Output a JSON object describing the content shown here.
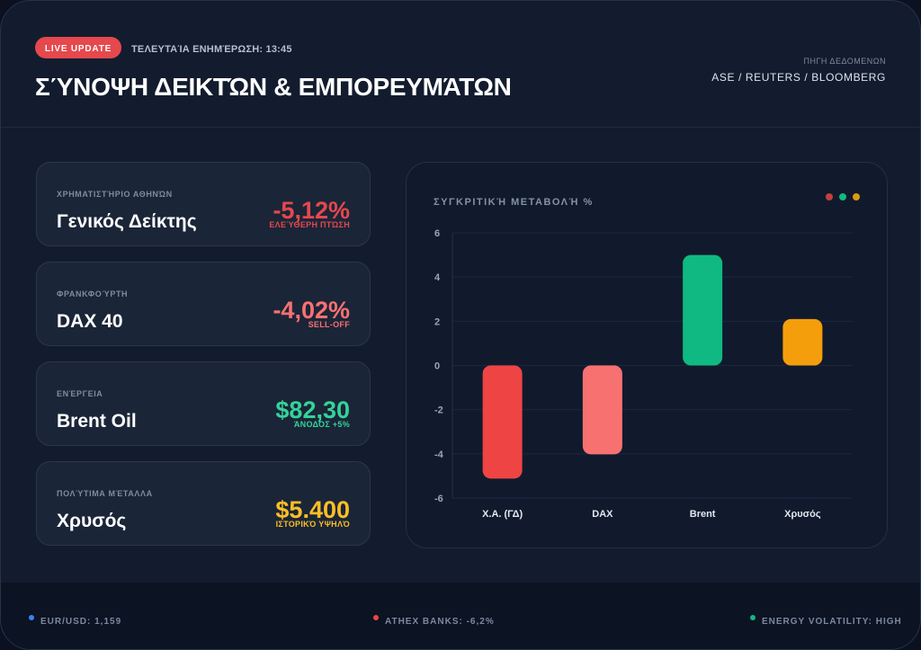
{
  "header": {
    "live_badge": "LIVE UPDATE",
    "last_update": "ΤΕΛΕΥΤΑΊΑ ΕΝΗΜΈΡΩΣΗ: 13:45",
    "title": "ΣΎΝΟΨΗ ΔΕΙΚΤΏΝ & ΕΜΠΟΡΕΥΜΆΤΩΝ",
    "source_label": "ΠΗΓΗ ΔΕΔΟΜΕΝΩΝ",
    "source_value": "ASE / REUTERS / BLOOMBERG"
  },
  "cards": [
    {
      "category": "ΧΡΗΜΑΤΙΣΤΉΡΙΟ ΑΘΗΝΏΝ",
      "name": "Γενικός Δείκτης",
      "value": "-5,12%",
      "sub": "ΕΛΕΎΘΕΡΗ ΠΤΏΣΗ",
      "color": "#e5484d"
    },
    {
      "category": "ΦΡΑΝΚΦΟΎΡΤΗ",
      "name": "DAX 40",
      "value": "-4,02%",
      "sub": "SELL-OFF",
      "color": "#f87171"
    },
    {
      "category": "ΕΝΈΡΓΕΙΑ",
      "name": "Brent Oil",
      "value": "$82,30",
      "sub": "ΆΝΟΔΟΣ +5%",
      "color": "#34d399"
    },
    {
      "category": "ΠΟΛΎΤΙΜΑ ΜΈΤΑΛΛΑ",
      "name": "Χρυσός",
      "value": "$5.400",
      "sub": "ΙΣΤΟΡΙΚΌ ΥΨΗΛΌ",
      "color": "#fbbf24"
    }
  ],
  "chart_panel": {
    "title": "ΣΥΓΚΡΙΤΙΚΉ ΜΕΤΑΒΟΛΉ %",
    "dot_colors": [
      "#c2413d",
      "#10b981",
      "#d99a14"
    ]
  },
  "chart_data": {
    "type": "bar",
    "categories": [
      "Χ.Α. (ΓΔ)",
      "DAX",
      "Brent",
      "Χρυσός"
    ],
    "values": [
      -5.12,
      -4.02,
      5.0,
      2.1
    ],
    "colors": [
      "#ef4444",
      "#f87171",
      "#10b981",
      "#f59e0b"
    ],
    "yticks": [
      6,
      4,
      2,
      0,
      -2,
      -4,
      -6
    ],
    "ylim": [
      -6,
      6
    ],
    "grid": true
  },
  "footer": {
    "items": [
      {
        "text": "EUR/USD: 1,159",
        "color": "#3b82f6"
      },
      {
        "text": "ATHEX BANKS: -6,2%",
        "color": "#ef4444"
      },
      {
        "text": "ENERGY VOLATILITY: HIGH",
        "color": "#10b981"
      }
    ]
  }
}
